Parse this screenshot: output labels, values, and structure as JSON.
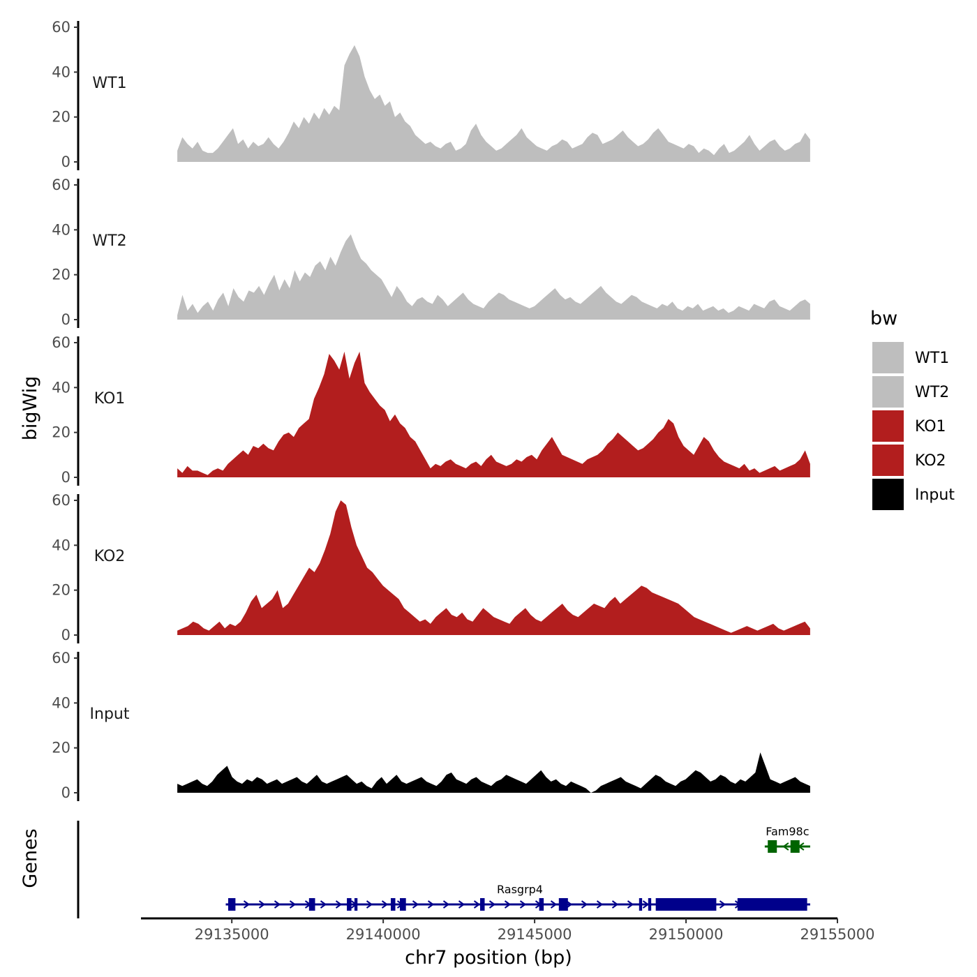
{
  "chart_data": {
    "type": "area",
    "title": "",
    "xlabel": "chr7 position (bp)",
    "ylabel": "bigWig",
    "genes_label": "Genes",
    "xlim": [
      29132000,
      29155000
    ],
    "x_ticks": [
      29135000,
      29140000,
      29145000,
      29150000,
      29155000
    ],
    "x_tick_labels": [
      "29135000",
      "29140000",
      "29145000",
      "29150000",
      "29155000"
    ],
    "ylim": [
      0,
      60
    ],
    "y_ticks": [
      0,
      20,
      40,
      60
    ],
    "y_tick_labels": [
      "0",
      "20",
      "40",
      "60"
    ],
    "x_start": 29133200,
    "x_end": 29154100,
    "legend": {
      "title": "bw",
      "position": "right",
      "entries": [
        {
          "label": "WT1",
          "color": "#bebebe"
        },
        {
          "label": "WT2",
          "color": "#bebebe"
        },
        {
          "label": "KO1",
          "color": "#b21e1e"
        },
        {
          "label": "KO2",
          "color": "#b21e1e"
        },
        {
          "label": "Input",
          "color": "#000000"
        }
      ]
    },
    "series": [
      {
        "name": "WT1",
        "color": "#bebebe",
        "values": [
          5,
          11,
          8,
          6,
          9,
          5,
          4,
          4,
          6,
          9,
          12,
          15,
          8,
          10,
          6,
          9,
          7,
          8,
          11,
          8,
          6,
          9,
          13,
          18,
          15,
          20,
          17,
          22,
          19,
          24,
          21,
          25,
          23,
          43,
          48,
          52,
          47,
          38,
          32,
          28,
          30,
          25,
          27,
          20,
          22,
          18,
          16,
          12,
          10,
          8,
          9,
          7,
          6,
          8,
          9,
          5,
          6,
          8,
          14,
          17,
          12,
          9,
          7,
          5,
          6,
          8,
          10,
          12,
          15,
          11,
          9,
          7,
          6,
          5,
          7,
          8,
          10,
          9,
          6,
          7,
          8,
          11,
          13,
          12,
          8,
          9,
          10,
          12,
          14,
          11,
          9,
          7,
          8,
          10,
          13,
          15,
          12,
          9,
          8,
          7,
          6,
          8,
          7,
          4,
          6,
          5,
          3,
          6,
          8,
          4,
          5,
          7,
          9,
          12,
          8,
          5,
          7,
          9,
          10,
          7,
          5,
          6,
          8,
          9,
          13,
          10
        ]
      },
      {
        "name": "WT2",
        "color": "#bebebe",
        "values": [
          2,
          11,
          4,
          7,
          3,
          6,
          8,
          4,
          9,
          12,
          6,
          14,
          10,
          8,
          13,
          12,
          15,
          11,
          16,
          20,
          13,
          18,
          14,
          22,
          17,
          21,
          19,
          24,
          26,
          22,
          28,
          24,
          30,
          35,
          38,
          32,
          27,
          25,
          22,
          20,
          18,
          14,
          10,
          15,
          12,
          8,
          6,
          9,
          10,
          8,
          7,
          11,
          9,
          6,
          8,
          10,
          12,
          9,
          7,
          6,
          5,
          8,
          10,
          12,
          11,
          9,
          8,
          7,
          6,
          5,
          6,
          8,
          10,
          12,
          14,
          11,
          9,
          10,
          8,
          7,
          9,
          11,
          13,
          15,
          12,
          10,
          8,
          7,
          9,
          11,
          10,
          8,
          7,
          6,
          5,
          7,
          6,
          8,
          5,
          4,
          6,
          5,
          7,
          4,
          5,
          6,
          4,
          5,
          3,
          4,
          6,
          5,
          4,
          7,
          6,
          5,
          8,
          9,
          6,
          5,
          4,
          6,
          8,
          9,
          7
        ]
      },
      {
        "name": "KO1",
        "color": "#b21e1e",
        "values": [
          4,
          2,
          5,
          3,
          3,
          2,
          1,
          3,
          4,
          3,
          6,
          8,
          10,
          12,
          10,
          14,
          13,
          15,
          13,
          12,
          16,
          19,
          20,
          18,
          22,
          24,
          26,
          35,
          40,
          46,
          55,
          52,
          48,
          56,
          44,
          51,
          56,
          42,
          38,
          35,
          32,
          30,
          25,
          28,
          24,
          22,
          18,
          16,
          12,
          8,
          4,
          6,
          5,
          7,
          8,
          6,
          5,
          4,
          6,
          7,
          5,
          8,
          10,
          7,
          6,
          5,
          6,
          8,
          7,
          9,
          10,
          8,
          12,
          15,
          18,
          14,
          10,
          9,
          8,
          7,
          6,
          8,
          9,
          10,
          12,
          15,
          17,
          20,
          18,
          16,
          14,
          12,
          13,
          15,
          17,
          20,
          22,
          26,
          24,
          18,
          14,
          12,
          10,
          14,
          18,
          16,
          12,
          9,
          7,
          6,
          5,
          4,
          6,
          3,
          4,
          2,
          3,
          4,
          5,
          3,
          4,
          5,
          6,
          8,
          12,
          6
        ]
      },
      {
        "name": "KO2",
        "color": "#b21e1e",
        "values": [
          2,
          3,
          4,
          6,
          5,
          3,
          2,
          4,
          6,
          3,
          5,
          4,
          6,
          10,
          15,
          18,
          12,
          14,
          16,
          20,
          12,
          14,
          18,
          22,
          26,
          30,
          28,
          32,
          38,
          45,
          55,
          60,
          58,
          48,
          40,
          35,
          30,
          28,
          25,
          22,
          20,
          18,
          16,
          12,
          10,
          8,
          6,
          7,
          5,
          8,
          10,
          12,
          9,
          8,
          10,
          7,
          6,
          9,
          12,
          10,
          8,
          7,
          6,
          5,
          8,
          10,
          12,
          9,
          7,
          6,
          8,
          10,
          12,
          14,
          11,
          9,
          8,
          10,
          12,
          14,
          13,
          12,
          15,
          17,
          14,
          16,
          18,
          20,
          22,
          21,
          19,
          18,
          17,
          16,
          15,
          14,
          12,
          10,
          8,
          7,
          6,
          5,
          4,
          3,
          2,
          1,
          2,
          3,
          4,
          3,
          2,
          3,
          4,
          5,
          3,
          2,
          3,
          4,
          5,
          6,
          3
        ]
      },
      {
        "name": "Input",
        "color": "#000000",
        "values": [
          4,
          3,
          4,
          5,
          6,
          4,
          3,
          5,
          8,
          10,
          12,
          7,
          5,
          4,
          6,
          5,
          7,
          6,
          4,
          5,
          6,
          4,
          5,
          6,
          7,
          5,
          4,
          6,
          8,
          5,
          4,
          5,
          6,
          7,
          8,
          6,
          4,
          5,
          3,
          2,
          5,
          7,
          4,
          6,
          8,
          5,
          4,
          5,
          6,
          7,
          5,
          4,
          3,
          5,
          8,
          9,
          6,
          5,
          4,
          6,
          7,
          5,
          4,
          3,
          5,
          6,
          8,
          7,
          6,
          5,
          4,
          6,
          8,
          10,
          7,
          5,
          6,
          4,
          3,
          5,
          4,
          3,
          2,
          0,
          1,
          3,
          4,
          5,
          6,
          7,
          5,
          4,
          3,
          2,
          4,
          6,
          8,
          7,
          5,
          4,
          3,
          5,
          6,
          8,
          10,
          9,
          7,
          5,
          6,
          8,
          7,
          5,
          4,
          6,
          5,
          7,
          9,
          18,
          12,
          6,
          5,
          4,
          5,
          6,
          7,
          5,
          4,
          3
        ]
      }
    ],
    "genes": [
      {
        "name": "Rasgrp4",
        "strand": "+",
        "color": "#00008b",
        "start": 29134800,
        "end": 29154100,
        "exons": [
          [
            29134880,
            29135120
          ],
          [
            29137550,
            29137750
          ],
          [
            29138800,
            29138950
          ],
          [
            29139050,
            29139150
          ],
          [
            29140250,
            29140400
          ],
          [
            29140550,
            29140750
          ],
          [
            29143200,
            29143350
          ],
          [
            29145150,
            29145300
          ],
          [
            29145800,
            29146100
          ],
          [
            29148450,
            29148550
          ],
          [
            29148750,
            29148850
          ],
          [
            29149000,
            29151000
          ],
          [
            29151700,
            29154000
          ]
        ]
      },
      {
        "name": "Fam98c",
        "strand": "-",
        "color": "#006400",
        "start": 29152600,
        "end": 29154100,
        "exons": [
          [
            29152700,
            29153000
          ],
          [
            29153450,
            29153750
          ]
        ]
      }
    ]
  }
}
